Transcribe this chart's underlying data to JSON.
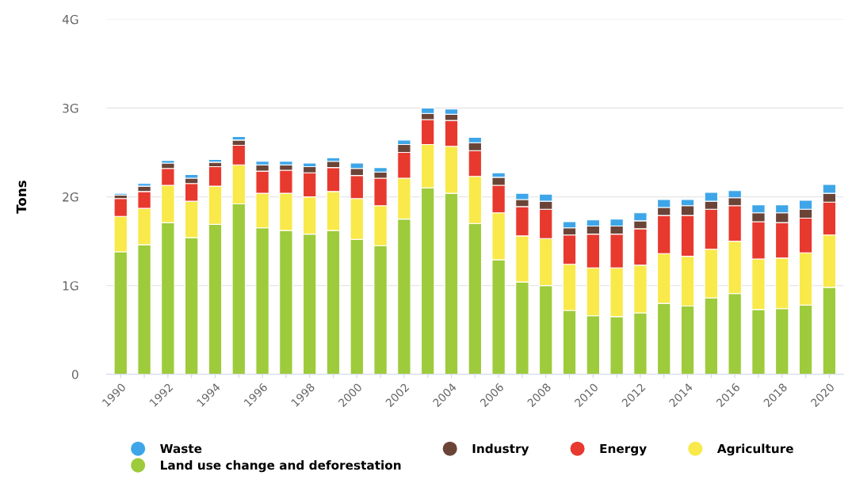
{
  "chart_data": {
    "type": "bar",
    "stacked": true,
    "ylabel": "Tons",
    "categories": [
      "1990",
      null,
      "1992",
      null,
      "1994",
      null,
      "1996",
      null,
      "1998",
      null,
      "2000",
      null,
      "2002",
      null,
      "2004",
      null,
      "2006",
      null,
      "2008",
      null,
      "2010",
      null,
      "2012",
      null,
      "2014",
      null,
      "2016",
      null,
      "2018",
      null,
      "2020"
    ],
    "series": [
      {
        "name": "Land use change and deforestation",
        "color": "#9dcb3b",
        "values": [
          1.38,
          1.46,
          1.71,
          1.54,
          1.69,
          1.92,
          1.65,
          1.62,
          1.58,
          1.62,
          1.52,
          1.45,
          1.75,
          2.1,
          2.04,
          1.7,
          1.29,
          1.04,
          1.0,
          0.72,
          0.66,
          0.65,
          0.69,
          0.8,
          0.77,
          0.86,
          0.91,
          0.73,
          0.74,
          0.78,
          0.98
        ]
      },
      {
        "name": "Agriculture",
        "color": "#f9e94a",
        "values": [
          0.4,
          0.41,
          0.42,
          0.41,
          0.43,
          0.44,
          0.39,
          0.42,
          0.42,
          0.44,
          0.46,
          0.45,
          0.46,
          0.49,
          0.53,
          0.53,
          0.53,
          0.52,
          0.53,
          0.52,
          0.54,
          0.55,
          0.54,
          0.56,
          0.56,
          0.55,
          0.59,
          0.57,
          0.57,
          0.59,
          0.59
        ]
      },
      {
        "name": "Energy",
        "color": "#e8392e",
        "values": [
          0.2,
          0.19,
          0.19,
          0.2,
          0.22,
          0.22,
          0.25,
          0.26,
          0.27,
          0.27,
          0.26,
          0.31,
          0.29,
          0.28,
          0.29,
          0.29,
          0.31,
          0.33,
          0.33,
          0.33,
          0.38,
          0.38,
          0.41,
          0.43,
          0.46,
          0.45,
          0.4,
          0.42,
          0.4,
          0.39,
          0.37
        ]
      },
      {
        "name": "Industry",
        "color": "#6b4438",
        "values": [
          0.04,
          0.06,
          0.06,
          0.06,
          0.05,
          0.06,
          0.07,
          0.06,
          0.07,
          0.07,
          0.08,
          0.07,
          0.09,
          0.07,
          0.07,
          0.09,
          0.09,
          0.08,
          0.09,
          0.08,
          0.09,
          0.09,
          0.09,
          0.09,
          0.11,
          0.09,
          0.09,
          0.1,
          0.11,
          0.1,
          0.1
        ]
      },
      {
        "name": "Waste",
        "color": "#3ea6e8",
        "values": [
          0.02,
          0.03,
          0.03,
          0.04,
          0.03,
          0.04,
          0.04,
          0.04,
          0.04,
          0.04,
          0.06,
          0.05,
          0.05,
          0.06,
          0.06,
          0.06,
          0.05,
          0.07,
          0.08,
          0.07,
          0.07,
          0.08,
          0.09,
          0.09,
          0.07,
          0.1,
          0.08,
          0.09,
          0.09,
          0.1,
          0.1
        ]
      }
    ],
    "ylim": [
      0,
      4
    ],
    "yticks": [
      0,
      {
        "value": 1,
        "label": "1G"
      },
      {
        "value": 2,
        "label": "2G"
      },
      {
        "value": 3,
        "label": "3G"
      },
      {
        "value": 4,
        "label": "4G"
      }
    ],
    "grid": "y",
    "legend": "bottom"
  }
}
